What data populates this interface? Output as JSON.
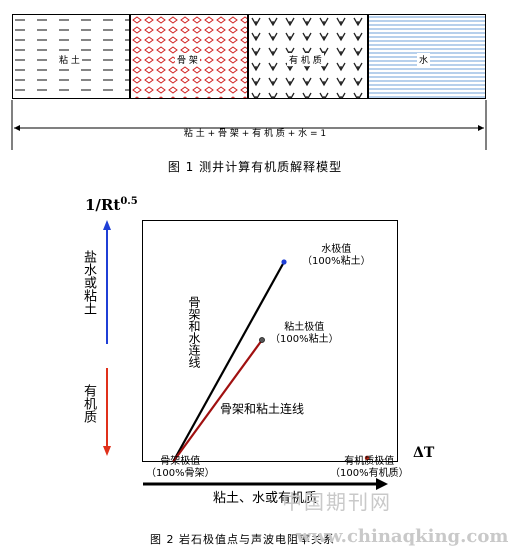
{
  "fig1": {
    "segments": [
      {
        "label": "粘 土"
      },
      {
        "label": "骨 架"
      },
      {
        "label": "有 机 质"
      },
      {
        "label": "水"
      }
    ],
    "equation": "粘 土 + 骨 架 + 有 机 质 + 水 = 1",
    "caption": "图 1  测井计算有机质解释模型"
  },
  "fig2": {
    "y_axis_label": "1/Rt",
    "y_axis_exp": "0.5",
    "up_label": "盐水或粘土",
    "down_label": "有机质",
    "x_axis_label": "ΔT",
    "x_bottom_label": "粘土、水或有机质",
    "water_point": {
      "line1": "水极值",
      "line2": "（100%粘土）"
    },
    "clay_point": {
      "line1": "粘土极值",
      "line2": "（100%粘土）"
    },
    "matrix_point": {
      "line1": "骨架极值",
      "line2": "（100%骨架）"
    },
    "organic_point": {
      "line1": "有机质极值",
      "line2": "（100%有机质）"
    },
    "black_line_label": "骨架和水连线",
    "red_line_label": "骨架和粘土连线",
    "caption": "图 2   岩石极值点与声波电阻率关系",
    "colors": {
      "blue": "#1f3fd6",
      "red": "#e0301a",
      "dark_red": "#a01010"
    }
  },
  "watermark": {
    "text1": "中国期刊网",
    "text2": "www.chinaqking.com"
  }
}
